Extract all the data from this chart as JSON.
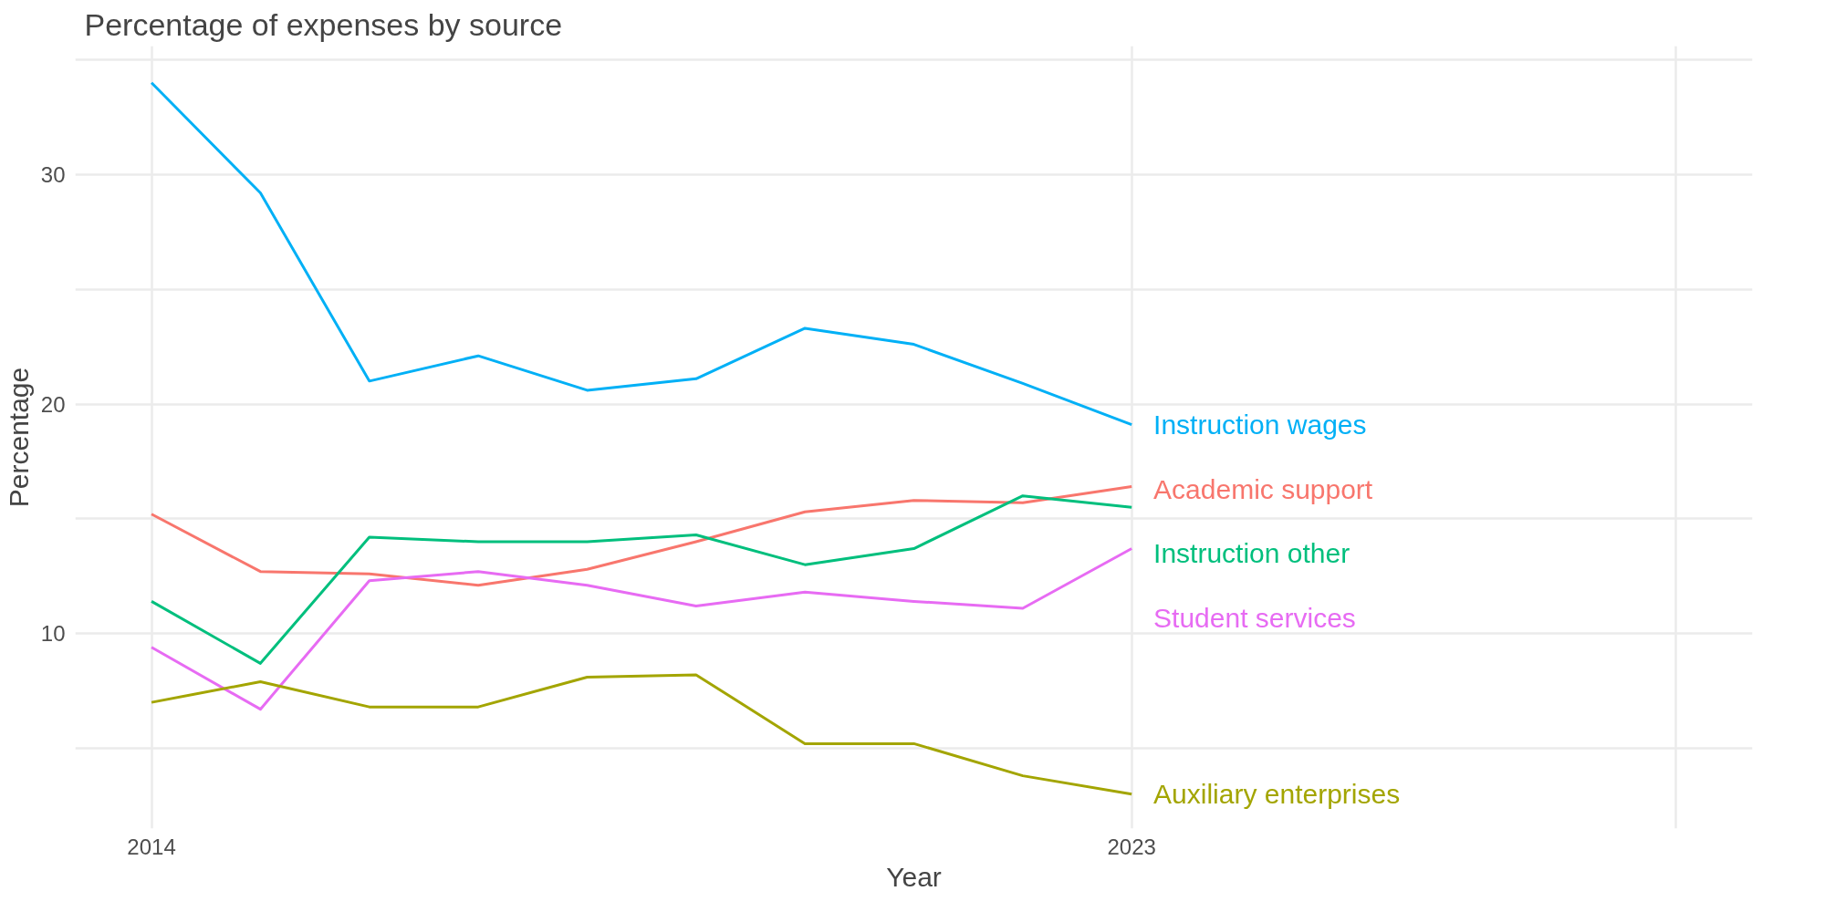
{
  "chart_data": {
    "type": "line",
    "title": "Percentage of expenses by source",
    "xlabel": "Year",
    "ylabel": "Percentage",
    "x": [
      2014,
      2015,
      2016,
      2017,
      2018,
      2019,
      2020,
      2021,
      2022,
      2023
    ],
    "xlim": [
      2013.3,
      2028.7
    ],
    "xticks": [
      2014,
      2023,
      {
        "value": 2028,
        "label": null
      }
    ],
    "ylim": [
      1.5,
      35.6
    ],
    "yticks": [
      {
        "value": 5,
        "label": null
      },
      10,
      {
        "value": 15,
        "label": null
      },
      20,
      {
        "value": 25,
        "label": null
      },
      30,
      {
        "value": 35,
        "label": null
      }
    ],
    "grid": true,
    "line_style": "solid",
    "series": [
      {
        "name": "Instruction wages",
        "color": "#00b0f6",
        "values": [
          34.0,
          29.2,
          21.0,
          22.1,
          20.6,
          21.1,
          23.3,
          22.6,
          20.9,
          19.1
        ]
      },
      {
        "name": "Academic support",
        "color": "#f8766d",
        "values": [
          15.2,
          12.7,
          12.6,
          12.1,
          12.8,
          14.0,
          15.3,
          15.8,
          15.7,
          16.4
        ]
      },
      {
        "name": "Instruction other",
        "color": "#00bf7d",
        "values": [
          11.4,
          8.7,
          14.2,
          14.0,
          14.0,
          14.3,
          13.0,
          13.7,
          16.0,
          15.5
        ]
      },
      {
        "name": "Student services",
        "color": "#e76bf3",
        "values": [
          9.4,
          6.7,
          12.3,
          12.7,
          12.1,
          11.2,
          11.8,
          11.4,
          11.1,
          13.7
        ]
      },
      {
        "name": "Auxiliary enterprises",
        "color": "#a3a500",
        "values": [
          7.0,
          7.9,
          6.8,
          6.8,
          8.1,
          8.2,
          5.2,
          5.2,
          3.8,
          3.0
        ]
      }
    ]
  }
}
